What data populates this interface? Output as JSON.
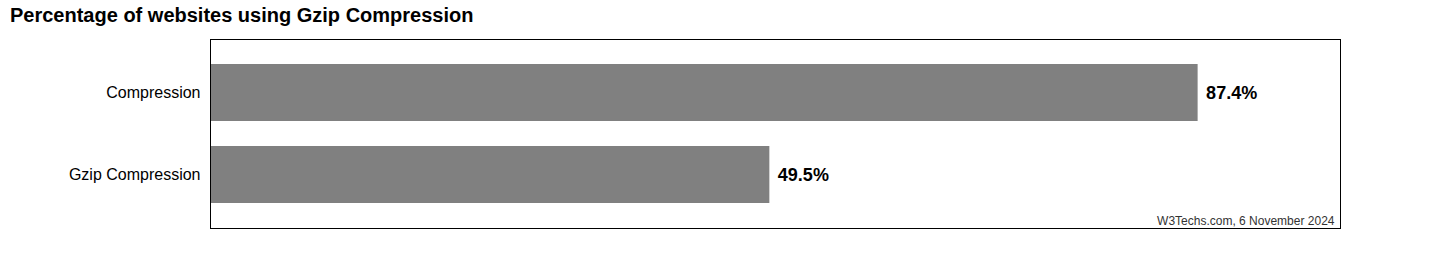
{
  "chart_data": {
    "type": "bar",
    "orientation": "horizontal",
    "title": "Percentage of websites using Gzip Compression",
    "categories": [
      "Compression",
      "Gzip Compression"
    ],
    "values": [
      87.4,
      49.5
    ],
    "value_labels": [
      "87.4%",
      "49.5%"
    ],
    "data_labels": true,
    "color": "#808080",
    "xlim": [
      0,
      100
    ],
    "tick_labels": "y",
    "grid": false,
    "annotation": "W3Techs.com, 6 November 2024"
  }
}
